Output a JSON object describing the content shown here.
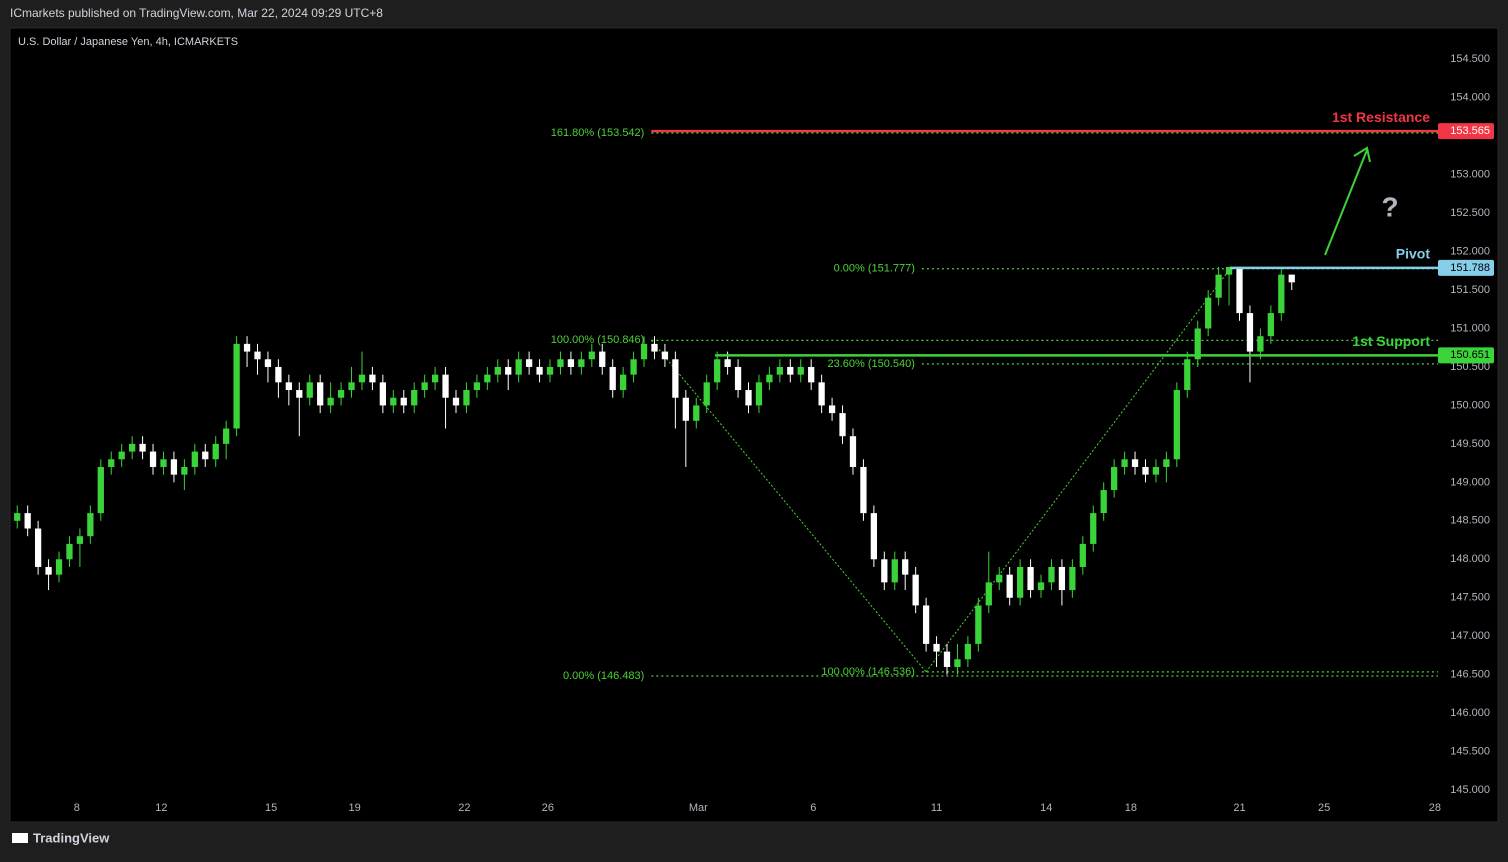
{
  "header": {
    "publisher": "ICmarkets published on TradingView.com, Mar 22, 2024 09:29 UTC+8"
  },
  "footer": {
    "brand": "TradingView"
  },
  "chart_data": {
    "type": "candlestick",
    "title": "U.S. Dollar / Japanese Yen, 4h, ICMARKETS",
    "up_color": "#3ad43a",
    "down_color": "#ffffff",
    "open": [
      148.5,
      148.6,
      148.4,
      147.9,
      147.8,
      148.0,
      148.2,
      148.3,
      148.6,
      149.2,
      149.3,
      149.4,
      149.5,
      149.4,
      149.2,
      149.3,
      149.1,
      149.2,
      149.4,
      149.3,
      149.5,
      149.7,
      150.8,
      150.7,
      150.6,
      150.5,
      150.3,
      150.2,
      150.1,
      150.3,
      150.0,
      150.1,
      150.2,
      150.3,
      150.4,
      150.3,
      150.0,
      150.1,
      150.0,
      150.2,
      150.3,
      150.4,
      150.1,
      150.0,
      150.2,
      150.3,
      150.4,
      150.5,
      150.4,
      150.6,
      150.5,
      150.4,
      150.5,
      150.6,
      150.5,
      150.6,
      150.7,
      150.5,
      150.2,
      150.4,
      150.6,
      150.8,
      150.7,
      150.6,
      150.1,
      149.8,
      150.0,
      150.3,
      150.6,
      150.5,
      150.2,
      150.0,
      150.3,
      150.4,
      150.5,
      150.4,
      150.5,
      150.3,
      150.0,
      149.9,
      149.6,
      149.2,
      148.6,
      148.0,
      147.7,
      148.0,
      147.8,
      147.4,
      146.9,
      146.8,
      146.6,
      146.7,
      146.9,
      147.4,
      147.7,
      147.8,
      147.5,
      147.9,
      147.6,
      147.7,
      147.9,
      147.6,
      147.9,
      148.2,
      148.6,
      148.9,
      149.2,
      149.3,
      149.2,
      149.1,
      149.2,
      149.3,
      150.2,
      150.6,
      151.0,
      151.4,
      151.7,
      151.8,
      151.2,
      150.7,
      150.9,
      151.2,
      151.7
    ],
    "high": [
      148.7,
      148.7,
      148.5,
      148.0,
      148.1,
      148.3,
      148.4,
      148.7,
      149.3,
      149.4,
      149.5,
      149.6,
      149.6,
      149.5,
      149.4,
      149.4,
      149.3,
      149.5,
      149.5,
      149.6,
      149.8,
      150.9,
      150.9,
      150.8,
      150.7,
      150.6,
      150.4,
      150.3,
      150.4,
      150.4,
      150.3,
      150.3,
      150.5,
      150.7,
      150.5,
      150.4,
      150.2,
      150.2,
      150.3,
      150.4,
      150.5,
      150.5,
      150.2,
      150.3,
      150.4,
      150.5,
      150.6,
      150.6,
      150.7,
      150.7,
      150.6,
      150.6,
      150.7,
      150.7,
      150.7,
      150.8,
      150.8,
      150.6,
      150.5,
      150.7,
      150.9,
      150.9,
      150.8,
      150.7,
      150.2,
      150.1,
      150.4,
      150.7,
      150.7,
      150.6,
      150.3,
      150.4,
      150.5,
      150.6,
      150.6,
      150.6,
      150.6,
      150.4,
      150.1,
      150.0,
      149.7,
      149.3,
      148.7,
      148.1,
      148.1,
      148.1,
      147.9,
      147.5,
      147.0,
      146.9,
      146.9,
      147.0,
      147.5,
      148.1,
      147.9,
      147.9,
      148.0,
      148.0,
      147.8,
      148.0,
      148.0,
      148.0,
      148.3,
      148.7,
      149.0,
      149.3,
      149.4,
      149.4,
      149.3,
      149.3,
      149.4,
      150.3,
      150.7,
      151.1,
      151.5,
      151.8,
      151.8,
      151.8,
      151.3,
      151.0,
      151.3,
      151.8,
      151.7
    ],
    "low": [
      148.4,
      148.3,
      147.8,
      147.6,
      147.7,
      147.9,
      147.9,
      148.2,
      148.5,
      149.1,
      149.2,
      149.3,
      149.3,
      149.1,
      149.1,
      149.0,
      148.9,
      149.1,
      149.2,
      149.2,
      149.3,
      149.6,
      150.5,
      150.4,
      150.3,
      150.1,
      150.0,
      149.6,
      150.0,
      149.9,
      149.9,
      150.0,
      150.1,
      150.2,
      150.2,
      149.9,
      149.9,
      149.9,
      149.9,
      150.1,
      150.2,
      149.7,
      149.9,
      149.9,
      150.1,
      150.2,
      150.3,
      150.2,
      150.3,
      150.4,
      150.3,
      150.3,
      150.4,
      150.4,
      150.4,
      150.5,
      150.4,
      150.1,
      150.1,
      150.3,
      150.5,
      150.6,
      150.5,
      149.7,
      149.2,
      149.7,
      149.9,
      150.2,
      150.4,
      150.1,
      149.9,
      149.9,
      150.2,
      150.3,
      150.3,
      150.3,
      150.2,
      149.9,
      149.8,
      149.5,
      149.1,
      148.5,
      147.9,
      147.6,
      147.6,
      147.6,
      147.3,
      146.8,
      146.6,
      146.5,
      146.5,
      146.6,
      146.8,
      147.3,
      147.6,
      147.4,
      147.4,
      147.5,
      147.5,
      147.6,
      147.4,
      147.5,
      147.8,
      148.1,
      148.5,
      148.8,
      149.1,
      149.1,
      149.0,
      149.0,
      149.0,
      149.2,
      150.1,
      150.5,
      150.9,
      151.3,
      151.3,
      151.1,
      150.3,
      150.6,
      150.8,
      151.1,
      151.5
    ],
    "close": [
      148.6,
      148.4,
      147.9,
      147.8,
      148.0,
      148.2,
      148.3,
      148.6,
      149.2,
      149.3,
      149.4,
      149.5,
      149.4,
      149.2,
      149.3,
      149.1,
      149.2,
      149.4,
      149.3,
      149.5,
      149.7,
      150.8,
      150.7,
      150.6,
      150.5,
      150.3,
      150.2,
      150.1,
      150.3,
      150.0,
      150.1,
      150.2,
      150.3,
      150.4,
      150.3,
      150.0,
      150.1,
      150.0,
      150.2,
      150.3,
      150.4,
      150.1,
      150.0,
      150.2,
      150.3,
      150.4,
      150.5,
      150.4,
      150.6,
      150.5,
      150.4,
      150.5,
      150.6,
      150.5,
      150.6,
      150.7,
      150.5,
      150.2,
      150.4,
      150.6,
      150.8,
      150.7,
      150.6,
      150.1,
      149.8,
      150.0,
      150.3,
      150.6,
      150.5,
      150.2,
      150.0,
      150.3,
      150.4,
      150.5,
      150.4,
      150.5,
      150.3,
      150.0,
      149.9,
      149.6,
      149.2,
      148.6,
      148.0,
      147.7,
      148.0,
      147.8,
      147.4,
      146.9,
      146.8,
      146.6,
      146.7,
      146.9,
      147.4,
      147.7,
      147.8,
      147.5,
      147.9,
      147.6,
      147.7,
      147.9,
      147.6,
      147.9,
      148.2,
      148.6,
      148.9,
      149.2,
      149.3,
      149.2,
      149.1,
      149.2,
      149.3,
      150.2,
      150.6,
      151.0,
      151.4,
      151.7,
      151.8,
      151.2,
      150.7,
      150.9,
      151.2,
      151.7,
      151.6
    ],
    "xlim": [
      -0.5,
      136
    ],
    "xticks": [
      {
        "value": 5.7,
        "label": "8"
      },
      {
        "value": 13.8,
        "label": "12"
      },
      {
        "value": 24.3,
        "label": "15"
      },
      {
        "value": 32.3,
        "label": "19"
      },
      {
        "value": 42.8,
        "label": "22"
      },
      {
        "value": 50.8,
        "label": "26"
      },
      {
        "value": 65.2,
        "label": "Mar"
      },
      {
        "value": 76.2,
        "label": "6"
      },
      {
        "value": 88.0,
        "label": "11"
      },
      {
        "value": 98.5,
        "label": "14"
      },
      {
        "value": 106.6,
        "label": "18"
      },
      {
        "value": 117.0,
        "label": "21"
      },
      {
        "value": 125.1,
        "label": "25"
      },
      {
        "value": 135.7,
        "label": "28"
      }
    ],
    "ylim": [
      144.91,
      154.88
    ],
    "yticks": [
      {
        "value": 145,
        "label": "145.000"
      },
      {
        "value": 145.5,
        "label": "145.500"
      },
      {
        "value": 146,
        "label": "146.000"
      },
      {
        "value": 146.5,
        "label": "146.500"
      },
      {
        "value": 147,
        "label": "147.000"
      },
      {
        "value": 147.5,
        "label": "147.500"
      },
      {
        "value": 148,
        "label": "148.000"
      },
      {
        "value": 148.5,
        "label": "148.500"
      },
      {
        "value": 149,
        "label": "149.000"
      },
      {
        "value": 149.5,
        "label": "149.500"
      },
      {
        "value": 150,
        "label": "150.000"
      },
      {
        "value": 150.5,
        "label": "150.500"
      },
      {
        "value": 151,
        "label": "151.000"
      },
      {
        "value": 151.5,
        "label": "151.500"
      },
      {
        "value": 152,
        "label": "152.000"
      },
      {
        "value": 152.5,
        "label": "152.500"
      },
      {
        "value": 153,
        "label": "153.000"
      },
      {
        "value": 153.5,
        "label": "153.500"
      },
      {
        "value": 154,
        "label": "154.000"
      },
      {
        "value": 154.5,
        "label": "154.500"
      }
    ],
    "grid": false,
    "fib_levels": [
      {
        "label": "161.80% (153.542)",
        "value": 153.542,
        "start": 60.7,
        "color": "#4cd137"
      },
      {
        "label": "100.00% (150.846)",
        "value": 150.846,
        "start": 60.7,
        "color": "#4cd137"
      },
      {
        "label": "0.00% (146.483)",
        "value": 146.483,
        "start": 60.7,
        "color": "#4cd137"
      },
      {
        "label": "0.00% (151.777)",
        "value": 151.777,
        "start": 86.6,
        "color": "#4cd137"
      },
      {
        "label": "23.60% (150.540)",
        "value": 150.54,
        "start": 86.6,
        "color": "#4cd137"
      },
      {
        "label": "100.00% (146.536)",
        "value": 146.536,
        "start": 86.6,
        "color": "#4cd137"
      }
    ],
    "key_levels": [
      {
        "name": "1st Resistance",
        "value": 153.565,
        "start": 60.7,
        "color": "#f23645"
      },
      {
        "name": "Pivot",
        "value": 151.788,
        "start": 116.1,
        "color": "#87ceeb"
      },
      {
        "name": "1st Support",
        "value": 150.651,
        "start": 66.8,
        "color": "#3bd43b"
      }
    ],
    "trend_lines": [
      {
        "x": [
          60.7,
          87.0
        ],
        "y": [
          150.846,
          146.536
        ],
        "color": "#4cd137"
      },
      {
        "x": [
          87.0,
          116.1
        ],
        "y": [
          146.536,
          151.777
        ],
        "color": "#4cd137"
      }
    ],
    "question": "?"
  }
}
